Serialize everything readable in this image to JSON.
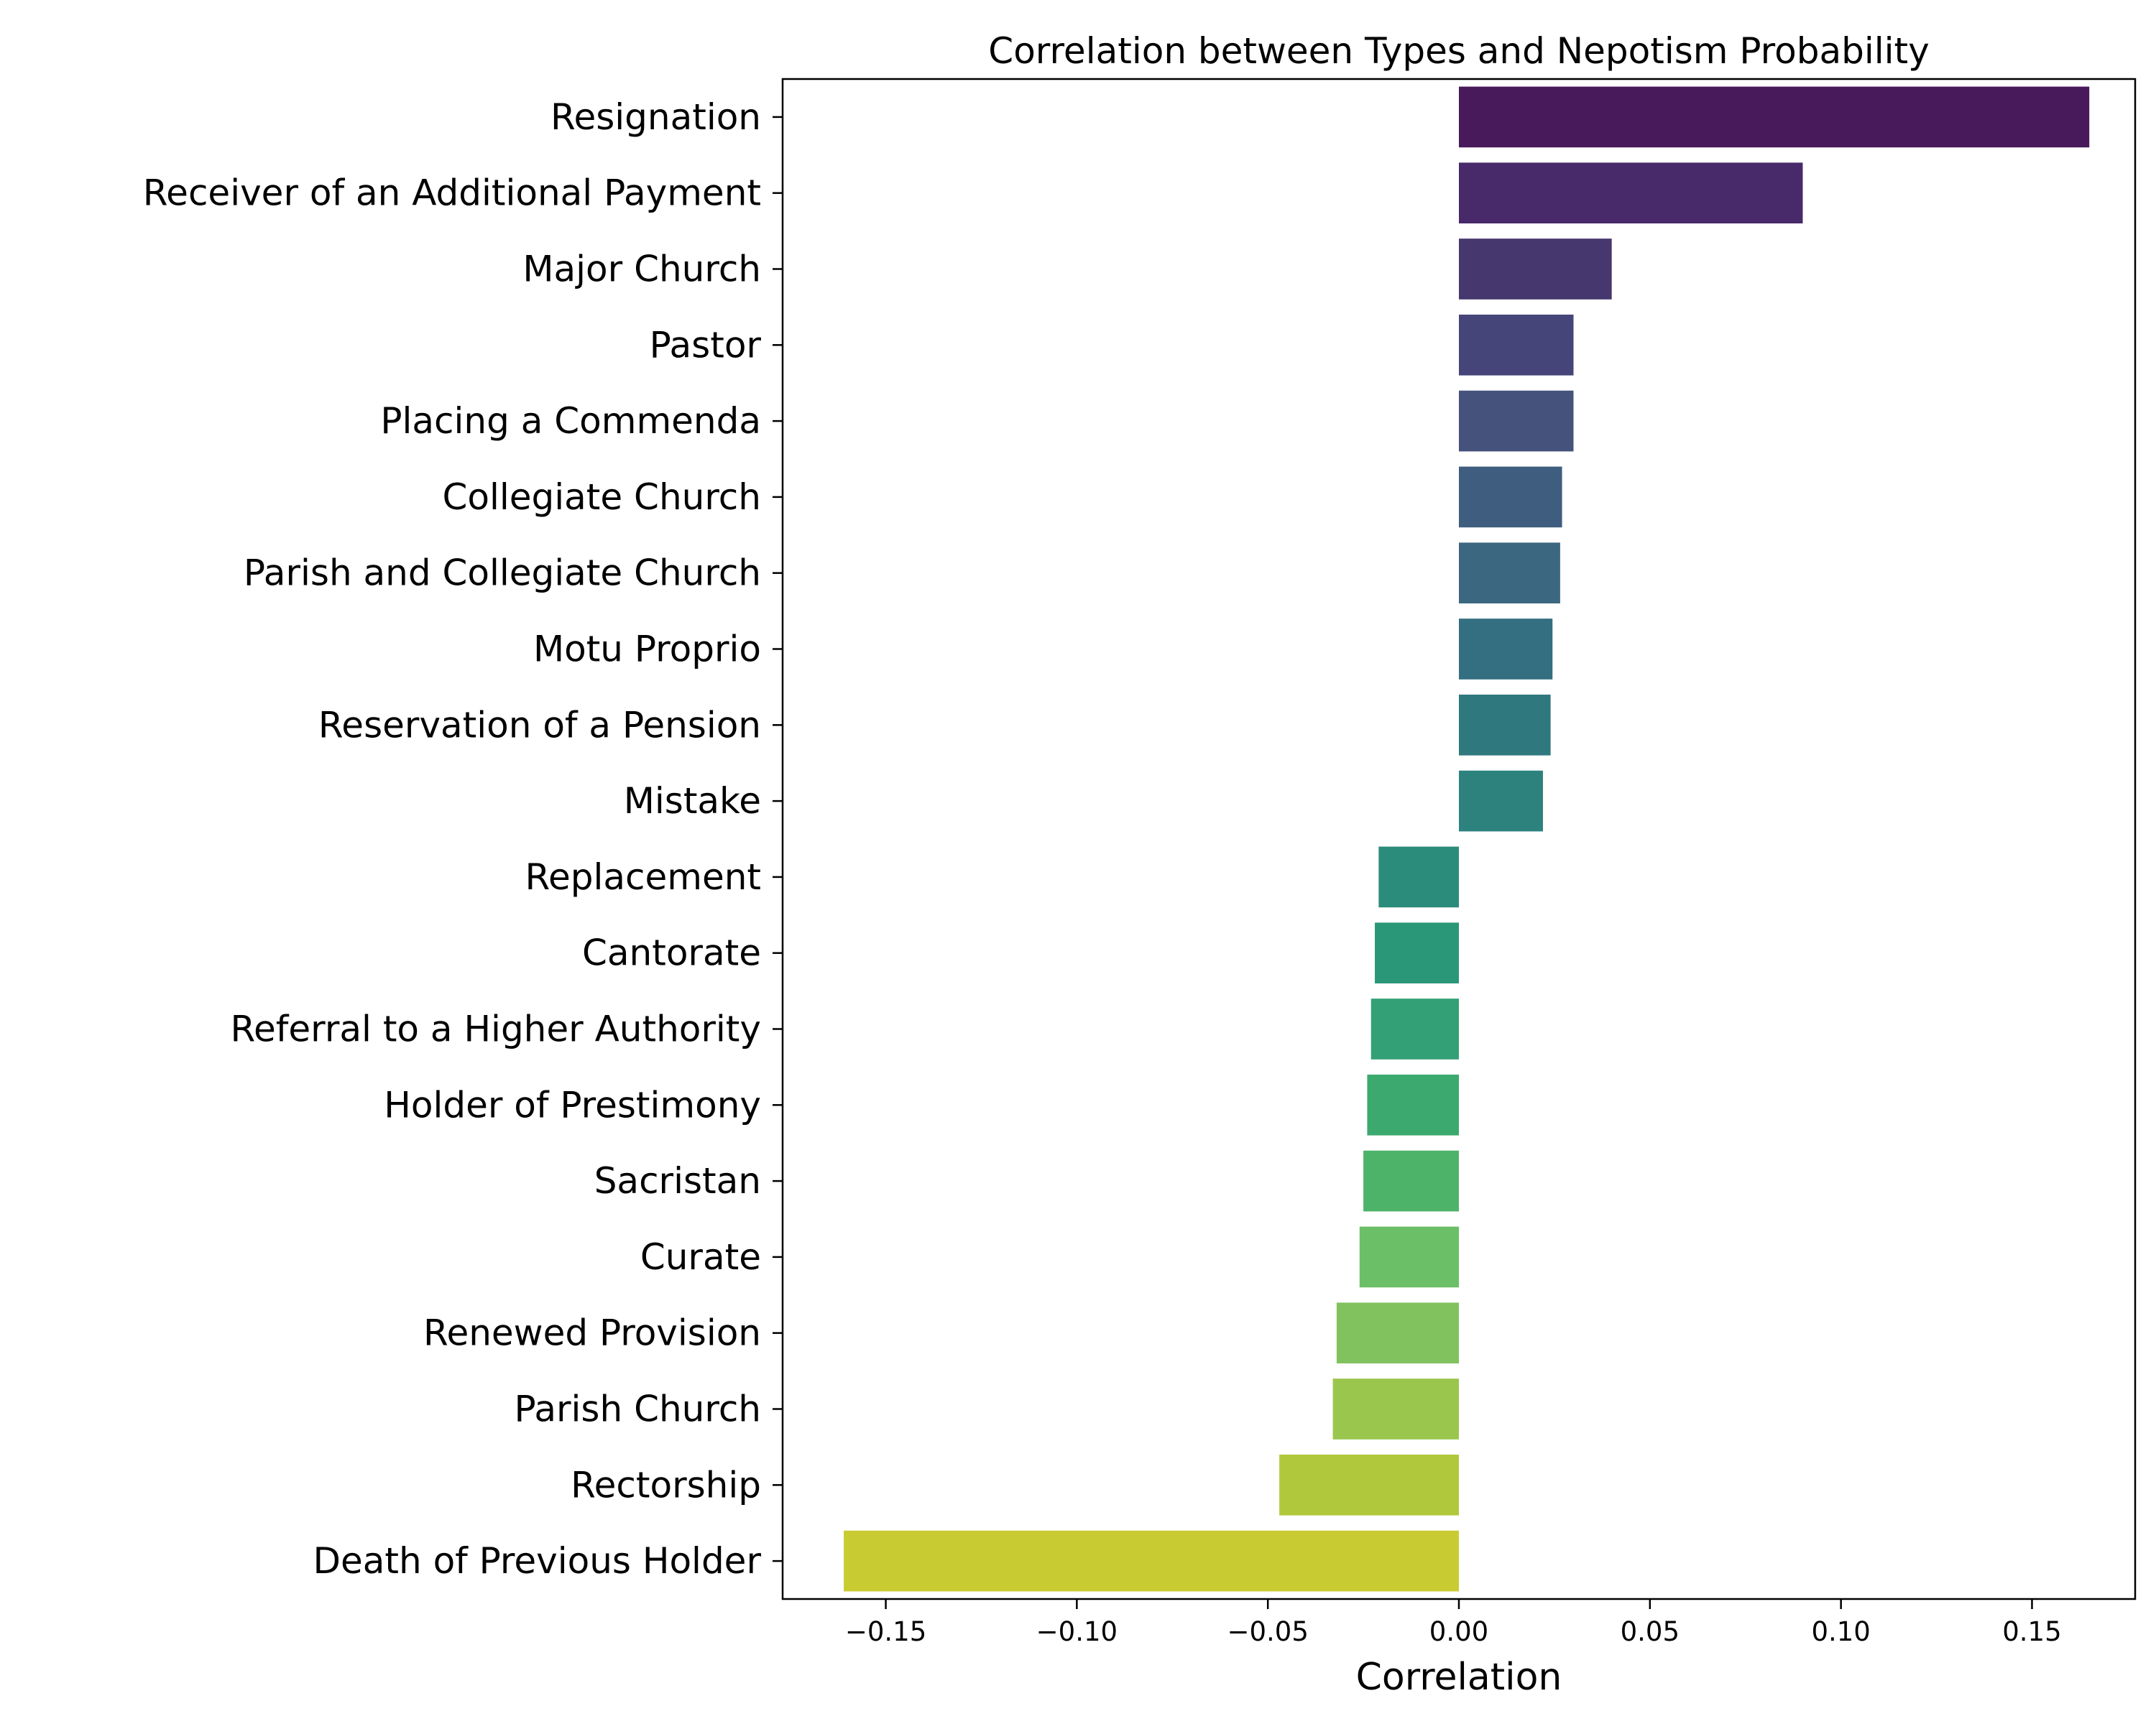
{
  "chart_data": {
    "type": "bar",
    "orientation": "horizontal",
    "title": "Correlation between Types and Nepotism Probability",
    "xlabel": "Correlation",
    "ylabel": "",
    "xlim": [
      -0.177,
      0.177
    ],
    "x_ticks": [
      -0.15,
      -0.1,
      -0.05,
      0.0,
      0.05,
      0.1,
      0.15
    ],
    "x_tick_labels": [
      "−0.15",
      "−0.10",
      "−0.05",
      "0.00",
      "0.05",
      "0.10",
      "0.15"
    ],
    "grid": false,
    "legend": "none",
    "colormap": "viridis",
    "categories": [
      "Resignation",
      "Receiver of an Additional Payment",
      "Major Church",
      "Pastor",
      "Placing a Commenda",
      "Collegiate Church",
      "Parish and Collegiate Church",
      "Motu Proprio",
      "Reservation of a Pension",
      "Mistake",
      "Replacement",
      "Cantorate",
      "Referral to a Higher Authority",
      "Holder of Prestimony",
      "Sacristan",
      "Curate",
      "Renewed Provision",
      "Parish Church",
      "Rectorship",
      "Death of Previous Holder"
    ],
    "values": [
      0.165,
      0.09,
      0.04,
      0.03,
      0.03,
      0.027,
      0.0265,
      0.0245,
      0.024,
      0.022,
      -0.021,
      -0.022,
      -0.023,
      -0.024,
      -0.025,
      -0.026,
      -0.032,
      -0.033,
      -0.047,
      -0.161
    ],
    "colors": [
      "#481a5b",
      "#482a6a",
      "#46376e",
      "#464579",
      "#45527c",
      "#3f5d7e",
      "#3b6780",
      "#336f80",
      "#2f787e",
      "#2d827e",
      "#2c8c7b",
      "#2a9778",
      "#33a075",
      "#3ca96f",
      "#4cb369",
      "#6abf67",
      "#81c25e",
      "#9bc64e",
      "#b0c93c",
      "#c9cb33"
    ]
  }
}
